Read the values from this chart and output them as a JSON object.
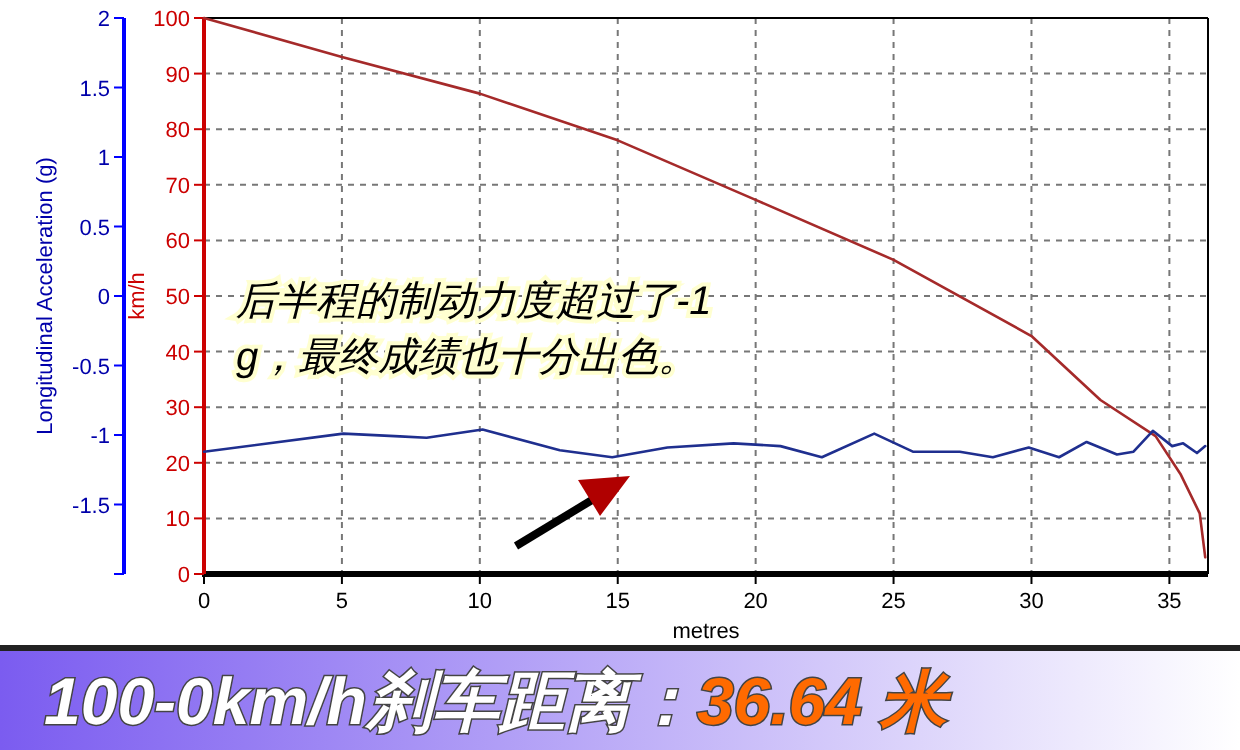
{
  "chart_data": {
    "type": "line",
    "title": "100-0km/h刹车距离：36.64 米",
    "xlabel": "metres",
    "ylabel": "km/h",
    "y2label": "Longitudinal Acceleration (g)",
    "xlim": [
      0,
      36.4
    ],
    "xticks": [
      0,
      5,
      10,
      15,
      20,
      25,
      30,
      35
    ],
    "ylim": [
      0,
      100
    ],
    "yticks": [
      0,
      10,
      20,
      30,
      40,
      50,
      60,
      70,
      80,
      90,
      100
    ],
    "y2lim": [
      -2,
      2
    ],
    "y2ticks": [
      {
        "value": -2,
        "label": null
      },
      -1.5,
      -1,
      -0.5,
      0,
      0.5,
      1,
      1.5,
      2
    ],
    "grid": true,
    "annotations": [
      "后半程的制动力度超过了-1g，最终成绩也十分出色。"
    ],
    "series": [
      {
        "color": "#a52a2a",
        "x": [
          0,
          5,
          10,
          15,
          20,
          25,
          30,
          32.5,
          34.5,
          35.4,
          36.1,
          36.3
        ],
        "values": [
          100,
          93,
          86.4,
          78,
          67.3,
          56.5,
          42.8,
          31.3,
          24.8,
          18,
          10.9,
          3
        ]
      },
      {
        "color": "#1f2f8f",
        "axis": "y2",
        "x": [
          0,
          5.05,
          7.1,
          8.07,
          10.1,
          12.9,
          14.8,
          16.8,
          19.2,
          20.9,
          22.4,
          24.3,
          25.7,
          27.4,
          28.6,
          29.9,
          31.0,
          32.0,
          33.1,
          33.7,
          34.4,
          35.1,
          35.5,
          36.0,
          36.3
        ],
        "values": [
          -1.12,
          -0.99,
          -1.01,
          -1.02,
          -0.96,
          -1.11,
          -1.16,
          -1.09,
          -1.06,
          -1.08,
          -1.16,
          -0.99,
          -1.12,
          -1.12,
          -1.16,
          -1.09,
          -1.16,
          -1.05,
          -1.14,
          -1.12,
          -0.97,
          -1.08,
          -1.06,
          -1.13,
          -1.08
        ]
      }
    ]
  }
}
